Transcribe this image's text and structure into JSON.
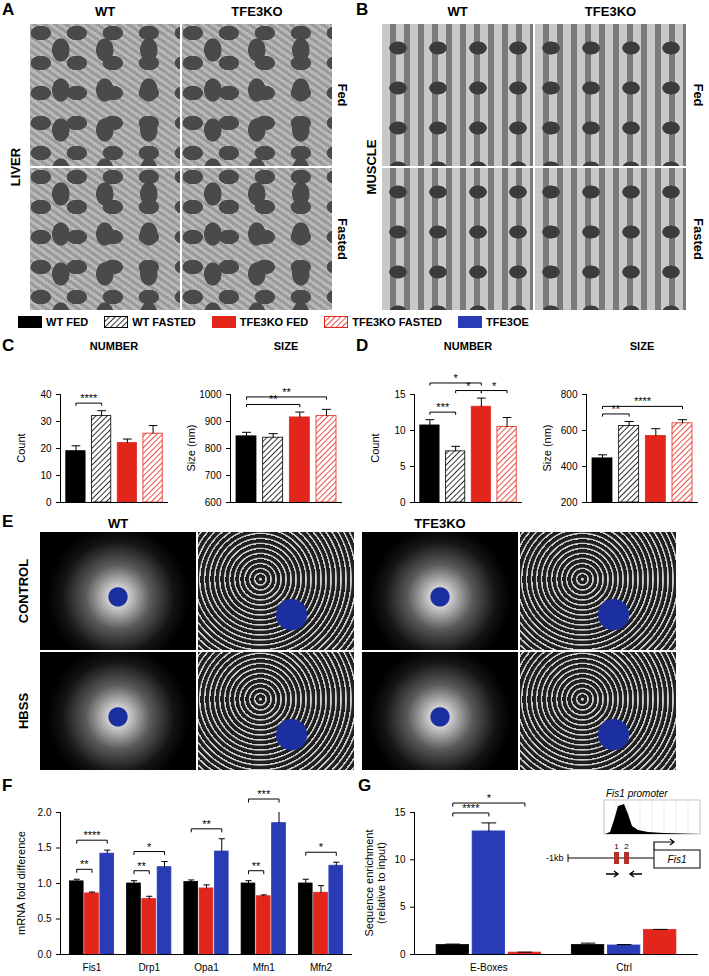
{
  "figure_panels": {
    "A": {
      "label": "A",
      "tissue": "LIVER",
      "columns": [
        "WT",
        "TFE3KO"
      ],
      "rows": [
        "Fed",
        "Fasted"
      ]
    },
    "B": {
      "label": "B",
      "tissue": "MUSCLE",
      "columns": [
        "WT",
        "TFE3KO"
      ],
      "rows": [
        "Fed",
        "Fasted"
      ]
    },
    "E": {
      "label": "E",
      "columns": [
        "WT",
        "TFE3KO"
      ],
      "rows": [
        "CONTROL",
        "HBSS"
      ]
    }
  },
  "chart_data": [
    {
      "panel": "C",
      "type": "bar",
      "title": "NUMBER",
      "ylabel": "Count",
      "ylim": [
        0,
        40
      ],
      "yticks": [
        0,
        10,
        20,
        30,
        40
      ],
      "tick_labels": "y",
      "series": [
        {
          "name": "WT FED",
          "color": "#000000",
          "values": [
            19
          ],
          "errors": [
            2
          ]
        },
        {
          "name": "WT FASTED",
          "color": "#000000",
          "line_style": "hatched",
          "values": [
            32
          ],
          "errors": [
            2
          ]
        },
        {
          "name": "TFE3KO FED",
          "color": "#e3261c",
          "values": [
            22
          ],
          "errors": [
            1.5
          ]
        },
        {
          "name": "TFE3KO FASTED",
          "color": "#e3261c",
          "line_style": "hatched",
          "values": [
            25.5
          ],
          "errors": [
            3
          ]
        }
      ],
      "annotations": [
        {
          "from": 0,
          "to": 1,
          "label": "****"
        }
      ]
    },
    {
      "type": "bar",
      "title": "SIZE",
      "ylabel": "Size (nm)",
      "ylim": [
        600,
        1000
      ],
      "yticks": [
        600,
        700,
        800,
        900,
        1000
      ],
      "tick_labels": "y",
      "series": [
        {
          "name": "WT FED",
          "color": "#000000",
          "values": [
            845
          ],
          "errors": [
            15
          ]
        },
        {
          "name": "WT FASTED",
          "color": "#000000",
          "line_style": "hatched",
          "values": [
            840
          ],
          "errors": [
            15
          ]
        },
        {
          "name": "TFE3KO FED",
          "color": "#e3261c",
          "values": [
            915
          ],
          "errors": [
            20
          ]
        },
        {
          "name": "TFE3KO FASTED",
          "color": "#e3261c",
          "line_style": "hatched",
          "values": [
            920
          ],
          "errors": [
            25
          ]
        }
      ],
      "annotations": [
        {
          "from": 0,
          "to": 2,
          "label": "**"
        },
        {
          "from": 0,
          "to": 3,
          "label": "**"
        }
      ]
    },
    {
      "panel": "D",
      "type": "bar",
      "title": "NUMBER",
      "ylabel": "Count",
      "ylim": [
        0,
        15
      ],
      "yticks": [
        0,
        5,
        10,
        15
      ],
      "tick_labels": "y",
      "series": [
        {
          "name": "WT FED",
          "color": "#000000",
          "values": [
            10.7
          ],
          "errors": [
            0.8
          ]
        },
        {
          "name": "WT FASTED",
          "color": "#000000",
          "line_style": "hatched",
          "values": [
            7.1
          ],
          "errors": [
            0.7
          ]
        },
        {
          "name": "TFE3KO FED",
          "color": "#e3261c",
          "values": [
            13.3
          ],
          "errors": [
            1.2
          ]
        },
        {
          "name": "TFE3KO FASTED",
          "color": "#e3261c",
          "line_style": "hatched",
          "values": [
            10.5
          ],
          "errors": [
            1.3
          ]
        }
      ],
      "annotations": [
        {
          "from": 0,
          "to": 1,
          "label": "***"
        },
        {
          "from": 1,
          "to": 2,
          "label": "*"
        },
        {
          "from": 2,
          "to": 3,
          "label": "*"
        },
        {
          "from": 0,
          "to": 2,
          "label": "*"
        }
      ]
    },
    {
      "type": "bar",
      "title": "SIZE",
      "ylabel": "Size (nm)",
      "ylim": [
        200,
        800
      ],
      "yticks": [
        200,
        400,
        600,
        800
      ],
      "tick_labels": "y",
      "series": [
        {
          "name": "WT FED",
          "color": "#000000",
          "values": [
            445
          ],
          "errors": [
            20
          ]
        },
        {
          "name": "WT FASTED",
          "color": "#000000",
          "line_style": "hatched",
          "values": [
            625
          ],
          "errors": [
            25
          ]
        },
        {
          "name": "TFE3KO FED",
          "color": "#e3261c",
          "values": [
            570
          ],
          "errors": [
            40
          ]
        },
        {
          "name": "TFE3KO FASTED",
          "color": "#e3261c",
          "line_style": "hatched",
          "values": [
            640
          ],
          "errors": [
            20
          ]
        }
      ],
      "annotations": [
        {
          "from": 0,
          "to": 1,
          "label": "**"
        },
        {
          "from": 0,
          "to": 3,
          "label": "****"
        }
      ]
    },
    {
      "panel": "F",
      "type": "bar",
      "ylabel": "mRNA fold difference",
      "categories": [
        "Fis1",
        "Drp1",
        "Opa1",
        "Mfn1",
        "Mfn2"
      ],
      "ylim": [
        0,
        2
      ],
      "yticks": [
        {
          "value": 0,
          "label": "0.0"
        },
        {
          "value": 0.5,
          "label": "0.5"
        },
        {
          "value": 1,
          "label": "1.0"
        },
        {
          "value": 1.5,
          "label": "1.5"
        },
        {
          "value": 2,
          "label": "2.0"
        }
      ],
      "series": [
        {
          "name": "WT FED",
          "color": "#000000",
          "values": [
            1.03,
            1.0,
            1.02,
            1.0,
            1.0
          ],
          "errors": [
            0.03,
            0.04,
            0.03,
            0.04,
            0.06
          ]
        },
        {
          "name": "TFE3KO FED",
          "color": "#e3261c",
          "values": [
            0.86,
            0.78,
            0.93,
            0.82,
            0.87
          ],
          "errors": [
            0.02,
            0.04,
            0.05,
            0.02,
            0.1
          ]
        },
        {
          "name": "TFE3OE",
          "color": "#2a3cb5",
          "values": [
            1.42,
            1.23,
            1.45,
            1.85,
            1.25
          ],
          "errors": [
            0.05,
            0.08,
            0.18,
            0.2,
            0.05
          ]
        }
      ],
      "annotations": [
        {
          "category": 0,
          "from": 0,
          "to": 1,
          "label": "**"
        },
        {
          "category": 0,
          "from": 0,
          "to": 2,
          "label": "****"
        },
        {
          "category": 1,
          "from": 0,
          "to": 1,
          "label": "**"
        },
        {
          "category": 1,
          "from": 0,
          "to": 2,
          "label": "*"
        },
        {
          "category": 2,
          "from": 0,
          "to": 2,
          "label": "**"
        },
        {
          "category": 3,
          "from": 0,
          "to": 1,
          "label": "**"
        },
        {
          "category": 3,
          "from": 0,
          "to": 2,
          "label": "***"
        },
        {
          "category": 4,
          "from": 0,
          "to": 2,
          "label": "*"
        }
      ]
    },
    {
      "panel": "G",
      "type": "bar",
      "ylabel": "Sequence enrichment (relative to input)",
      "categories": [
        "E-Boxes",
        "Ctrl"
      ],
      "ylim": [
        0,
        15
      ],
      "yticks": [
        0,
        5,
        10,
        15
      ],
      "series": [
        {
          "name": "WT FED",
          "color": "#000000",
          "values": [
            1.0,
            1.0
          ],
          "errors": [
            0.1,
            0.2
          ]
        },
        {
          "name": "TFE3OE",
          "color": "#2a3cb5",
          "values": [
            13.0,
            0.95
          ],
          "errors": [
            0.9,
            0.1
          ]
        },
        {
          "name": "TFE3KO FED",
          "color": "#e3261c",
          "values": [
            0.2,
            2.6
          ],
          "errors": [
            0.05,
            0.05
          ]
        }
      ],
      "annotations": [
        {
          "category": 0,
          "from": 0,
          "to": 1,
          "label": "****"
        },
        {
          "category": 0,
          "from": 0,
          "to": 2,
          "label": "*"
        }
      ],
      "inset": {
        "title": "Fis1 promoter",
        "start_label": "-1kb",
        "sites": [
          "1",
          "2"
        ],
        "gene": "Fis1"
      }
    }
  ]
}
